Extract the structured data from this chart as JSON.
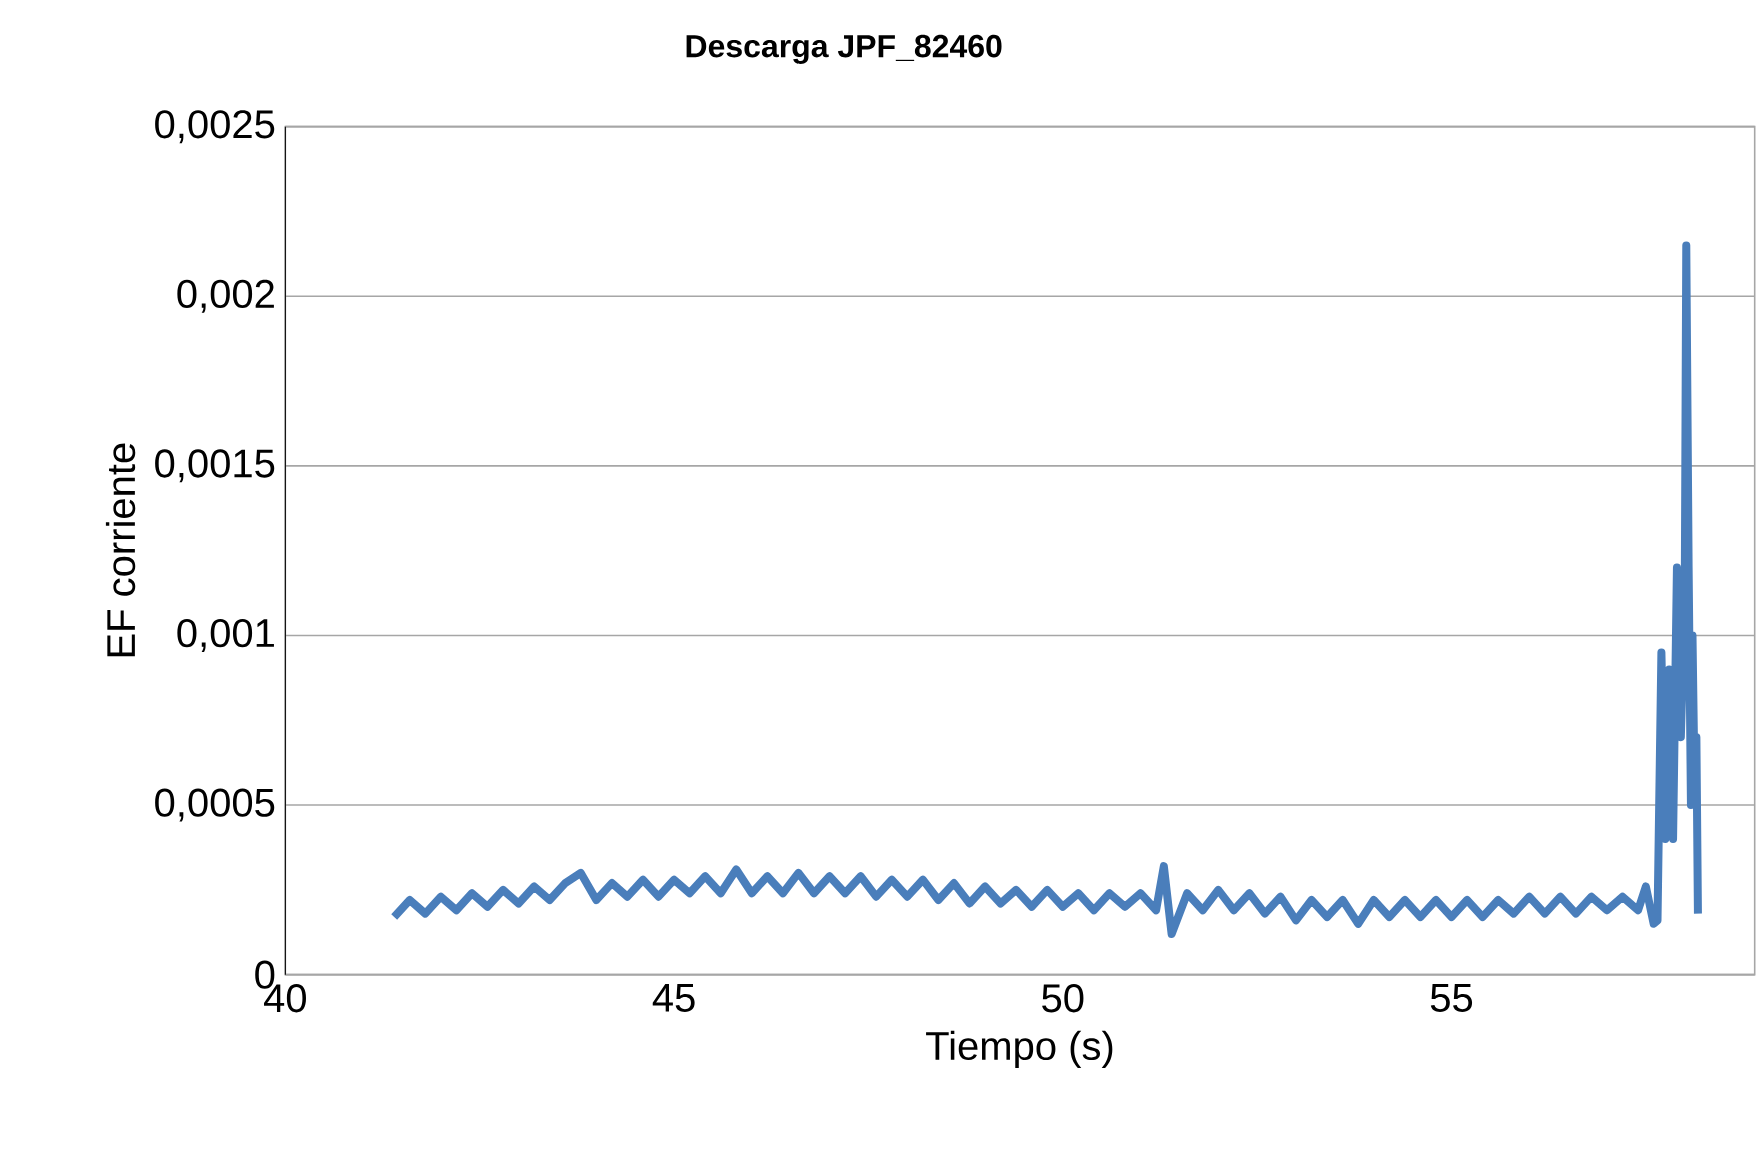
{
  "chart_data": {
    "type": "line",
    "title": "Descarga JPF_82460",
    "xlabel": "Tiempo (s)",
    "ylabel": "EF corriente",
    "xlim": [
      40,
      58.9
    ],
    "ylim": [
      0,
      0.0025
    ],
    "xticks": [
      40,
      45,
      50,
      55
    ],
    "yticks": [
      {
        "value": 0,
        "label": "0"
      },
      {
        "value": 0.0005,
        "label": "0,0005"
      },
      {
        "value": 0.001,
        "label": "0,001"
      },
      {
        "value": 0.0015,
        "label": "0,0015"
      },
      {
        "value": 0.002,
        "label": "0,002"
      },
      {
        "value": 0.0025,
        "label": "0,0025"
      }
    ],
    "grid": "y",
    "marker": "none",
    "line_style": "solid",
    "series": [
      {
        "color": "#4a7ebb",
        "x": [
          41.4,
          41.6,
          41.8,
          42.0,
          42.2,
          42.4,
          42.6,
          42.8,
          43.0,
          43.2,
          43.4,
          43.6,
          43.8,
          44.0,
          44.2,
          44.4,
          44.6,
          44.8,
          45.0,
          45.2,
          45.4,
          45.6,
          45.8,
          46.0,
          46.2,
          46.4,
          46.6,
          46.8,
          47.0,
          47.2,
          47.4,
          47.6,
          47.8,
          48.0,
          48.2,
          48.4,
          48.6,
          48.8,
          49.0,
          49.2,
          49.4,
          49.6,
          49.8,
          50.0,
          50.2,
          50.4,
          50.6,
          50.8,
          51.0,
          51.2,
          51.3,
          51.4,
          51.6,
          51.8,
          52.0,
          52.2,
          52.4,
          52.6,
          52.8,
          53.0,
          53.2,
          53.4,
          53.6,
          53.8,
          54.0,
          54.2,
          54.4,
          54.6,
          54.8,
          55.0,
          55.2,
          55.4,
          55.6,
          55.8,
          56.0,
          56.2,
          56.4,
          56.6,
          56.8,
          57.0,
          57.2,
          57.4,
          57.5,
          57.6,
          57.65,
          57.7,
          57.75,
          57.8,
          57.85,
          57.9,
          57.95,
          58.0,
          58.02,
          58.05,
          58.08,
          58.1,
          58.13,
          58.15,
          58.17
        ],
        "values": [
          0.00017,
          0.00022,
          0.00018,
          0.00023,
          0.00019,
          0.00024,
          0.0002,
          0.00025,
          0.00021,
          0.00026,
          0.00022,
          0.00027,
          0.0003,
          0.00022,
          0.00027,
          0.00023,
          0.00028,
          0.00023,
          0.00028,
          0.00024,
          0.00029,
          0.00024,
          0.00031,
          0.00024,
          0.00029,
          0.00024,
          0.0003,
          0.00024,
          0.00029,
          0.00024,
          0.00029,
          0.00023,
          0.00028,
          0.00023,
          0.00028,
          0.00022,
          0.00027,
          0.00021,
          0.00026,
          0.00021,
          0.00025,
          0.0002,
          0.00025,
          0.0002,
          0.00024,
          0.00019,
          0.00024,
          0.0002,
          0.00024,
          0.00019,
          0.00032,
          0.00012,
          0.00024,
          0.00019,
          0.00025,
          0.00019,
          0.00024,
          0.00018,
          0.00023,
          0.00016,
          0.00022,
          0.00017,
          0.00022,
          0.00015,
          0.00022,
          0.00017,
          0.00022,
          0.00017,
          0.00022,
          0.00017,
          0.00022,
          0.00017,
          0.00022,
          0.00018,
          0.00023,
          0.00018,
          0.00023,
          0.00018,
          0.00023,
          0.00019,
          0.00023,
          0.00019,
          0.00026,
          0.00015,
          0.00016,
          0.00095,
          0.0004,
          0.0009,
          0.0004,
          0.0012,
          0.0007,
          0.0011,
          0.00215,
          0.0012,
          0.0005,
          0.001,
          0.0005,
          0.0007,
          0.00018
        ]
      }
    ]
  }
}
